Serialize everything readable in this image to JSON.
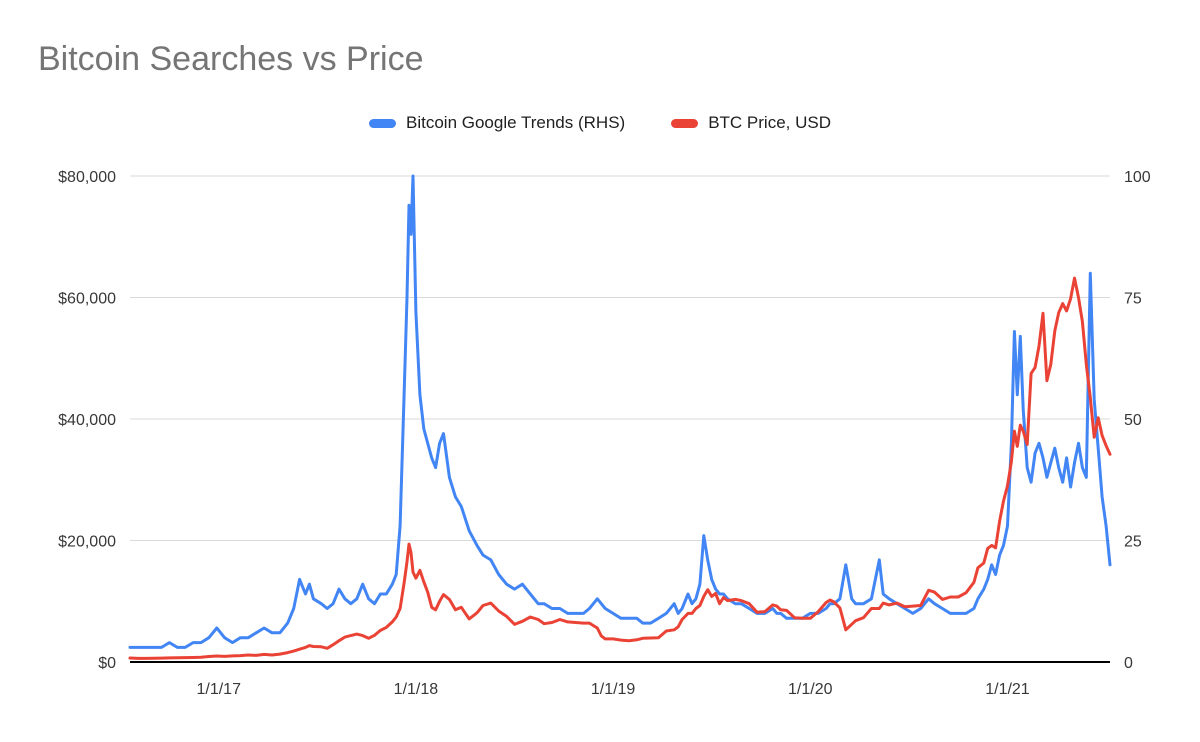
{
  "chart_data": {
    "type": "line",
    "title": "Bitcoin Searches vs Price",
    "legend": [
      {
        "label": "Bitcoin Google Trends (RHS)",
        "color": "#4285f4"
      },
      {
        "label": "BTC Price, USD",
        "color": "#ea4335"
      }
    ],
    "style": {
      "grid_color": "#d9d9d9",
      "axis_color": "#000000",
      "background": "#ffffff"
    },
    "left_axis": {
      "min": 0,
      "max": 80000,
      "ticks": [
        {
          "v": 0,
          "label": "$0"
        },
        {
          "v": 20000,
          "label": "$20,000"
        },
        {
          "v": 40000,
          "label": "$40,000"
        },
        {
          "v": 60000,
          "label": "$60,000"
        },
        {
          "v": 80000,
          "label": "$80,000"
        }
      ]
    },
    "right_axis": {
      "min": 0,
      "max": 100,
      "ticks": [
        {
          "v": 0,
          "label": "0"
        },
        {
          "v": 25,
          "label": "25"
        },
        {
          "v": 50,
          "label": "50"
        },
        {
          "v": 75,
          "label": "75"
        },
        {
          "v": 100,
          "label": "100"
        }
      ]
    },
    "x_axis": {
      "min": 2016.55,
      "max": 2021.52,
      "ticks": [
        {
          "v": 2017,
          "label": "1/1/17"
        },
        {
          "v": 2018,
          "label": "1/1/18"
        },
        {
          "v": 2019,
          "label": "1/1/19"
        },
        {
          "v": 2020,
          "label": "1/1/20"
        },
        {
          "v": 2021,
          "label": "1/1/21"
        }
      ]
    },
    "x": [
      2016.55,
      2016.59,
      2016.63,
      2016.67,
      2016.71,
      2016.75,
      2016.79,
      2016.83,
      2016.87,
      2016.91,
      2016.95,
      2016.99,
      2017.03,
      2017.07,
      2017.11,
      2017.15,
      2017.19,
      2017.23,
      2017.27,
      2017.31,
      2017.35,
      2017.38,
      2017.41,
      2017.44,
      2017.46,
      2017.48,
      2017.52,
      2017.55,
      2017.58,
      2017.61,
      2017.64,
      2017.67,
      2017.7,
      2017.73,
      2017.76,
      2017.79,
      2017.82,
      2017.85,
      2017.88,
      2017.9,
      2017.92,
      2017.94,
      2017.955,
      2017.965,
      2017.975,
      2017.985,
      2018.0,
      2018.02,
      2018.04,
      2018.06,
      2018.08,
      2018.1,
      2018.12,
      2018.14,
      2018.17,
      2018.2,
      2018.23,
      2018.27,
      2018.31,
      2018.34,
      2018.38,
      2018.42,
      2018.46,
      2018.5,
      2018.54,
      2018.58,
      2018.62,
      2018.65,
      2018.69,
      2018.73,
      2018.77,
      2018.81,
      2018.85,
      2018.88,
      2018.92,
      2018.94,
      2018.96,
      2019.0,
      2019.04,
      2019.08,
      2019.12,
      2019.15,
      2019.19,
      2019.23,
      2019.27,
      2019.31,
      2019.33,
      2019.35,
      2019.38,
      2019.4,
      2019.42,
      2019.44,
      2019.46,
      2019.48,
      2019.5,
      2019.52,
      2019.54,
      2019.56,
      2019.58,
      2019.62,
      2019.65,
      2019.69,
      2019.73,
      2019.77,
      2019.81,
      2019.83,
      2019.85,
      2019.88,
      2019.92,
      2019.96,
      2020.0,
      2020.04,
      2020.08,
      2020.1,
      2020.12,
      2020.15,
      2020.18,
      2020.21,
      2020.23,
      2020.27,
      2020.31,
      2020.35,
      2020.37,
      2020.4,
      2020.44,
      2020.48,
      2020.52,
      2020.56,
      2020.6,
      2020.63,
      2020.67,
      2020.71,
      2020.75,
      2020.79,
      2020.83,
      2020.85,
      2020.88,
      2020.9,
      2020.92,
      2020.94,
      2020.96,
      2020.98,
      2021.0,
      2021.02,
      2021.035,
      2021.05,
      2021.065,
      2021.08,
      2021.1,
      2021.12,
      2021.14,
      2021.16,
      2021.18,
      2021.2,
      2021.22,
      2021.24,
      2021.26,
      2021.28,
      2021.3,
      2021.32,
      2021.34,
      2021.36,
      2021.38,
      2021.4,
      2021.42,
      2021.44,
      2021.46,
      2021.48,
      2021.5,
      2021.52
    ],
    "series": [
      {
        "name": "Bitcoin Google Trends (RHS)",
        "axis": "right",
        "color": "#4285f4",
        "values": [
          3,
          3,
          3,
          3,
          3,
          4,
          3,
          3,
          4,
          4,
          5,
          7,
          5,
          4,
          5,
          5,
          6,
          7,
          6,
          6,
          8,
          11,
          17,
          14,
          16,
          13,
          12,
          11,
          12,
          15,
          13,
          12,
          13,
          16,
          13,
          12,
          14,
          14,
          16,
          18,
          28,
          55,
          75,
          94,
          88,
          100,
          72,
          55,
          48,
          45,
          42,
          40,
          45,
          47,
          38,
          34,
          32,
          27,
          24,
          22,
          21,
          18,
          16,
          15,
          16,
          14,
          12,
          12,
          11,
          11,
          10,
          10,
          10,
          11,
          13,
          12,
          11,
          10,
          9,
          9,
          9,
          8,
          8,
          9,
          10,
          12,
          10,
          11,
          14,
          12,
          13,
          16,
          26,
          21,
          17,
          15,
          14,
          14,
          13,
          12,
          12,
          11,
          10,
          10,
          11,
          10,
          10,
          9,
          9,
          9,
          10,
          10,
          11,
          12,
          12,
          13,
          20,
          13,
          12,
          12,
          13,
          21,
          14,
          13,
          12,
          11,
          10,
          11,
          13,
          12,
          11,
          10,
          10,
          10,
          11,
          13,
          15,
          17,
          20,
          18,
          22,
          24,
          28,
          45,
          68,
          55,
          67,
          52,
          40,
          37,
          43,
          45,
          42,
          38,
          41,
          44,
          40,
          37,
          42,
          36,
          41,
          45,
          40,
          38,
          80,
          54,
          44,
          34,
          28,
          20
        ]
      },
      {
        "name": "BTC Price, USD",
        "axis": "left",
        "color": "#ea4335",
        "values": [
          660,
          600,
          590,
          620,
          650,
          680,
          700,
          720,
          740,
          780,
          900,
          980,
          920,
          1010,
          1060,
          1150,
          1080,
          1250,
          1150,
          1300,
          1550,
          1800,
          2100,
          2400,
          2700,
          2550,
          2500,
          2250,
          2850,
          3500,
          4100,
          4350,
          4600,
          4350,
          3900,
          4400,
          5200,
          5700,
          6600,
          7400,
          8800,
          13000,
          16500,
          19400,
          18000,
          14800,
          13800,
          15100,
          13200,
          11500,
          9000,
          8600,
          10000,
          11100,
          10300,
          8600,
          9000,
          7100,
          8100,
          9300,
          9700,
          8400,
          7500,
          6200,
          6700,
          7400,
          7000,
          6300,
          6500,
          7000,
          6600,
          6500,
          6400,
          6400,
          5600,
          4300,
          3800,
          3800,
          3600,
          3500,
          3650,
          3900,
          3950,
          4000,
          5100,
          5300,
          5800,
          7000,
          8000,
          8000,
          8800,
          9300,
          10800,
          11900,
          10800,
          11300,
          9600,
          10600,
          10100,
          10300,
          10100,
          9600,
          8200,
          8300,
          9400,
          9200,
          8600,
          8500,
          7300,
          7200,
          7200,
          8300,
          9800,
          10200,
          9900,
          8900,
          5300,
          6200,
          6800,
          7300,
          8800,
          8800,
          9700,
          9400,
          9700,
          9100,
          9200,
          9300,
          11800,
          11500,
          10300,
          10700,
          10700,
          11400,
          13100,
          15500,
          16300,
          18700,
          19200,
          18800,
          23200,
          26500,
          29000,
          33000,
          38000,
          35500,
          39000,
          38000,
          35800,
          47500,
          48500,
          52000,
          57400,
          46300,
          49000,
          54500,
          57500,
          59000,
          57800,
          59800,
          63200,
          60000,
          56000,
          49000,
          43500,
          37000,
          40200,
          37300,
          35600,
          34200
        ]
      }
    ]
  }
}
